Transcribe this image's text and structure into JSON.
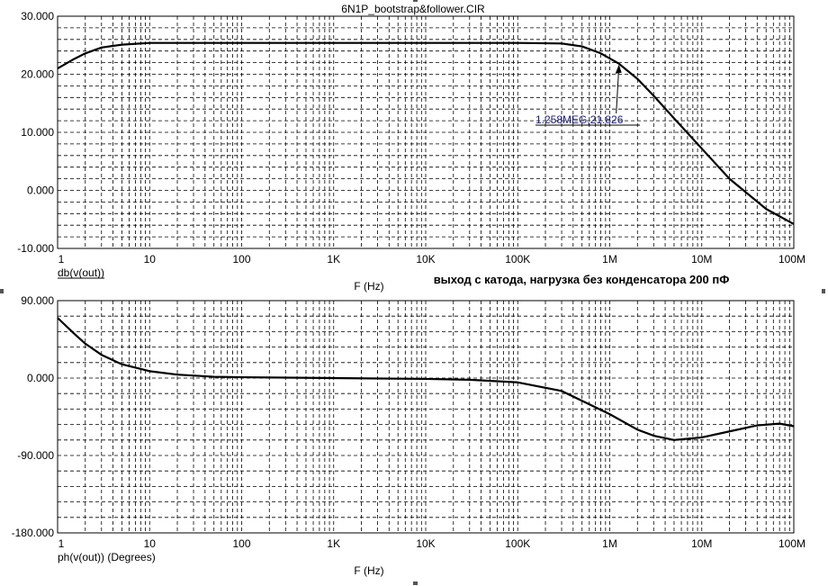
{
  "title": "6N1P_bootstrap&follower.CIR",
  "annotation_main": "выход с катода, нагрузка без конденсатора 200 пФ",
  "chart_data": [
    {
      "type": "line",
      "x_scale": "log",
      "xlim": [
        1,
        100000000
      ],
      "xticks": [
        1,
        10,
        100,
        1000,
        10000,
        100000,
        1000000,
        10000000,
        100000000
      ],
      "xtick_labels": [
        "1",
        "10",
        "100",
        "1K",
        "10K",
        "100K",
        "1M",
        "10M",
        "100M"
      ],
      "xlabel": "F (Hz)",
      "ylabel": "db(v(out))",
      "ylim": [
        -10,
        30
      ],
      "yticks": [
        -10,
        0,
        10,
        20,
        30
      ],
      "ytick_labels": [
        "-10.000",
        "0.000",
        "10.000",
        "20.000",
        "30.000"
      ],
      "grid": true,
      "series": [
        {
          "x": [
            1,
            1.5,
            2,
            3,
            5,
            10,
            100,
            1000,
            10000,
            100000,
            300000,
            500000,
            800000,
            1258000,
            2000000,
            3000000,
            5000000,
            10000000,
            20000000,
            50000000,
            100000000
          ],
          "y": [
            21,
            22.6,
            23.6,
            24.6,
            25.1,
            25.4,
            25.4,
            25.4,
            25.4,
            25.4,
            25.3,
            24.8,
            23.6,
            21.826,
            19.2,
            16.3,
            12.4,
            7.2,
            2,
            -3.2,
            -5.8
          ]
        }
      ],
      "marker": {
        "x": 1258000,
        "y": 21.826,
        "label": "1.258MEG,21.826"
      }
    },
    {
      "type": "line",
      "x_scale": "log",
      "xlim": [
        1,
        100000000
      ],
      "xticks": [
        1,
        10,
        100,
        1000,
        10000,
        100000,
        1000000,
        10000000,
        100000000
      ],
      "xtick_labels": [
        "1",
        "10",
        "100",
        "1K",
        "10K",
        "100K",
        "1M",
        "10M",
        "100M"
      ],
      "xlabel": "F (Hz)",
      "ylabel": "ph(v(out)) (Degrees)",
      "ylim": [
        -180,
        90
      ],
      "yticks": [
        -180,
        -90,
        0,
        90
      ],
      "ytick_labels": [
        "-180.000",
        "-90.000",
        "0.000",
        "90.000"
      ],
      "grid": true,
      "series": [
        {
          "x": [
            1,
            1.5,
            2,
            3,
            5,
            10,
            20,
            50,
            100,
            1000,
            10000,
            30000,
            100000,
            300000,
            1000000,
            2000000,
            3000000,
            5000000,
            10000000,
            20000000,
            40000000,
            70000000,
            100000000
          ],
          "y": [
            70,
            52,
            40,
            27,
            16,
            8,
            4,
            1.5,
            1,
            0,
            -1,
            -2,
            -5,
            -15,
            -42,
            -60,
            -67,
            -72,
            -69,
            -62,
            -55,
            -53,
            -56
          ]
        }
      ]
    }
  ]
}
